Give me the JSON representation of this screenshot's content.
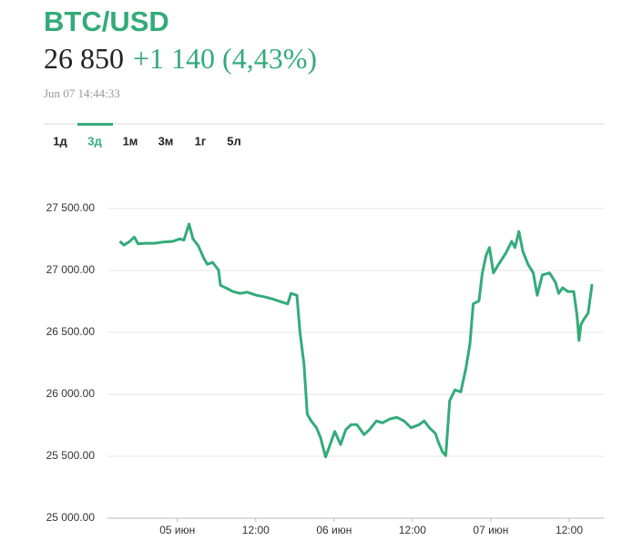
{
  "header": {
    "title": "BTC/USD",
    "price": "26 850",
    "change": "+1 140 (4,43%)",
    "timestamp": "Jun 07 14:44:33"
  },
  "tabs": [
    {
      "label": "1д",
      "active": false
    },
    {
      "label": "3д",
      "active": true
    },
    {
      "label": "1м",
      "active": false
    },
    {
      "label": "3м",
      "active": false
    },
    {
      "label": "1г",
      "active": false
    },
    {
      "label": "5л",
      "active": false
    }
  ],
  "chart_data": {
    "type": "line",
    "color": "#33ab7b",
    "grid": true,
    "x": [
      -8.8,
      -8.2,
      -7.4,
      -6.6,
      -6.0,
      -4.9,
      -3.5,
      -2.1,
      -0.7,
      0.4,
      1.0,
      1.8,
      2.4,
      3.2,
      4.0,
      4.6,
      5.4,
      6.3,
      6.6,
      7.4,
      8.5,
      9.6,
      10.7,
      12.1,
      13.5,
      14.6,
      16.0,
      16.9,
      17.4,
      18.3,
      18.8,
      19.4,
      19.9,
      20.5,
      21.3,
      21.9,
      22.7,
      23.3,
      24.1,
      25.0,
      25.8,
      26.6,
      27.5,
      28.6,
      29.4,
      30.5,
      31.4,
      32.5,
      33.6,
      34.7,
      35.8,
      37.0,
      37.8,
      38.6,
      39.5,
      40.0,
      40.6,
      41.1,
      41.7,
      42.5,
      43.4,
      44.2,
      44.8,
      45.3,
      46.2,
      46.7,
      47.3,
      47.8,
      48.4,
      49.2,
      50.3,
      51.2,
      51.7,
      52.3,
      52.9,
      53.7,
      54.5,
      55.1,
      55.9,
      57.0,
      57.9,
      58.4,
      59.0,
      59.8,
      60.7,
      61.2,
      61.5,
      61.8,
      62.3,
      62.9,
      63.5
    ],
    "values": [
      27235,
      27205,
      27230,
      27270,
      27215,
      27220,
      27220,
      27230,
      27235,
      27255,
      27245,
      27375,
      27255,
      27200,
      27105,
      27050,
      27065,
      27005,
      26880,
      26860,
      26830,
      26815,
      26825,
      26800,
      26785,
      26770,
      26745,
      26730,
      26815,
      26800,
      26495,
      26245,
      25840,
      25785,
      25730,
      25655,
      25495,
      25580,
      25700,
      25595,
      25715,
      25755,
      25755,
      25675,
      25715,
      25785,
      25770,
      25800,
      25815,
      25785,
      25730,
      25755,
      25785,
      25730,
      25685,
      25610,
      25535,
      25505,
      25950,
      26035,
      26020,
      26215,
      26405,
      26730,
      26755,
      26980,
      27125,
      27185,
      26980,
      27050,
      27140,
      27235,
      27185,
      27315,
      27155,
      27050,
      26980,
      26800,
      26965,
      26980,
      26905,
      26815,
      26860,
      26830,
      26830,
      26640,
      26435,
      26565,
      26610,
      26655,
      26890
    ],
    "xlim": [
      -10.7,
      65.3
    ],
    "xticks": [
      {
        "value": 0,
        "label": "05 июн"
      },
      {
        "value": 12,
        "label": "12:00"
      },
      {
        "value": 24,
        "label": "06 июн"
      },
      {
        "value": 36,
        "label": "12:00"
      },
      {
        "value": 48,
        "label": "07 июн"
      },
      {
        "value": 60,
        "label": "12:00"
      }
    ],
    "ylim": [
      25000,
      27500
    ],
    "yticks": [
      {
        "value": 25000,
        "label": "25 000.00"
      },
      {
        "value": 25500,
        "label": "25 500.00"
      },
      {
        "value": 26000,
        "label": "26 000.00"
      },
      {
        "value": 26500,
        "label": "26 500.00"
      },
      {
        "value": 27000,
        "label": "27 000.00"
      },
      {
        "value": 27500,
        "label": "27 500.00"
      }
    ]
  }
}
